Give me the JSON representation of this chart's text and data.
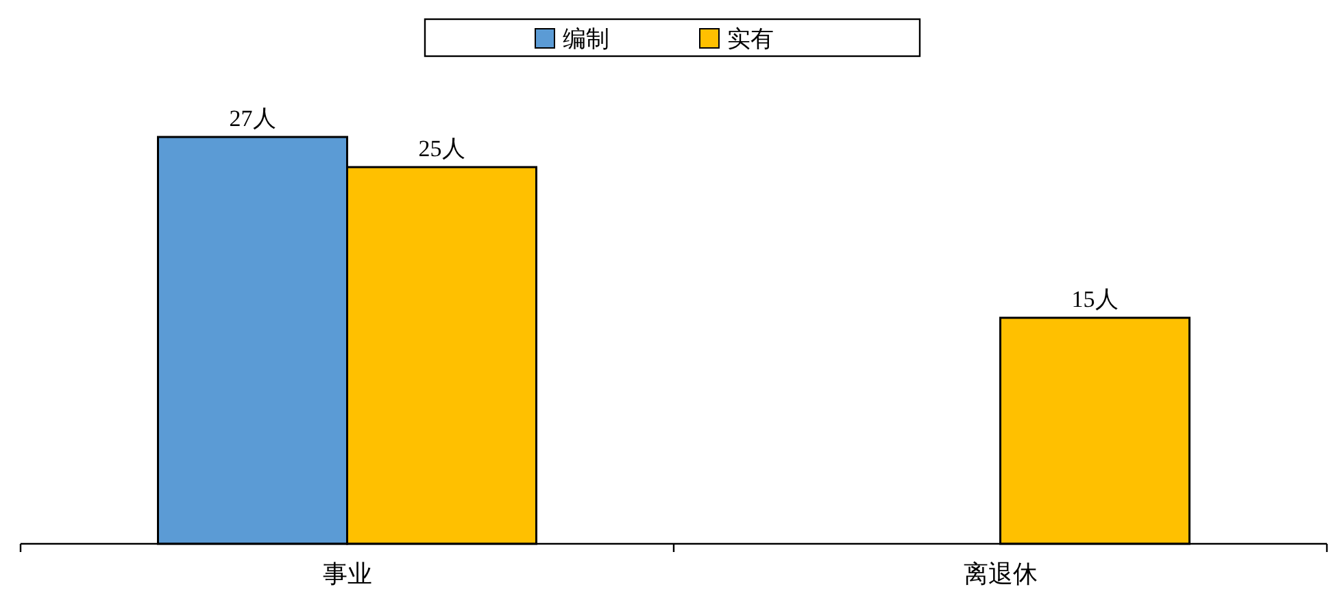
{
  "chart_data": {
    "type": "bar",
    "categories": [
      "事业",
      "离退休"
    ],
    "series": [
      {
        "name": "编制",
        "color": "#5b9bd5",
        "values": [
          27,
          null
        ],
        "value_labels": [
          "27人",
          null
        ]
      },
      {
        "name": "实有",
        "color": "#ffc000",
        "values": [
          25,
          15
        ],
        "value_labels": [
          "25人",
          "15人"
        ]
      }
    ],
    "legend": "top"
  }
}
